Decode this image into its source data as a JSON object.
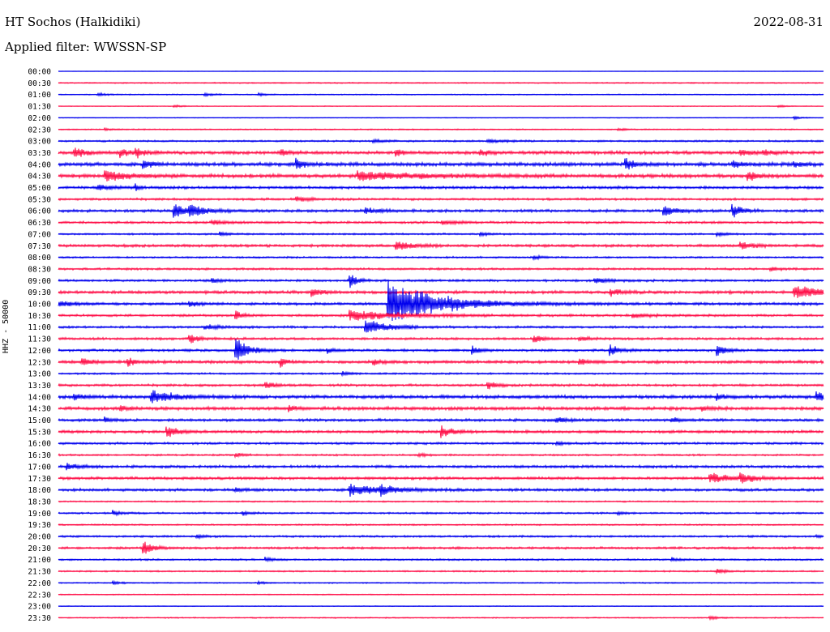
{
  "header": {
    "station": "HT Sochos (Halkidiki)",
    "date": "2022-08-31",
    "filter": "Applied filter: WWSSN-SP"
  },
  "chart_data": {
    "type": "line",
    "title": "HT Sochos (Halkidiki)",
    "ylabel": "HHZ - 50000",
    "xlabel": "",
    "line_colors": [
      "#0000ee",
      "#ff1049"
    ],
    "rows": [
      {
        "label": "00:00",
        "amp": 0.3,
        "events": []
      },
      {
        "label": "00:30",
        "amp": 0.8,
        "events": []
      },
      {
        "label": "01:00",
        "amp": 0.7,
        "events": [
          {
            "x": 0.05,
            "a": 2.5,
            "w": 0.01
          },
          {
            "x": 0.19,
            "a": 3,
            "w": 0.01
          },
          {
            "x": 0.26,
            "a": 2,
            "w": 0.01
          }
        ]
      },
      {
        "label": "01:30",
        "amp": 0.5,
        "events": [
          {
            "x": 0.15,
            "a": 2,
            "w": 0.01
          },
          {
            "x": 0.94,
            "a": 2,
            "w": 0.01
          }
        ]
      },
      {
        "label": "02:00",
        "amp": 0.5,
        "events": [
          {
            "x": 0.96,
            "a": 2.5,
            "w": 0.01
          }
        ]
      },
      {
        "label": "02:30",
        "amp": 0.8,
        "events": [
          {
            "x": 0.06,
            "a": 1.5,
            "w": 0.01
          },
          {
            "x": 0.73,
            "a": 2,
            "w": 0.01
          }
        ]
      },
      {
        "label": "03:00",
        "amp": 1.2,
        "events": [
          {
            "x": 0.41,
            "a": 3,
            "w": 0.01
          },
          {
            "x": 0.56,
            "a": 3,
            "w": 0.02
          }
        ]
      },
      {
        "label": "03:30",
        "amp": 2.2,
        "events": [
          {
            "x": 0.02,
            "a": 7,
            "w": 0.015
          },
          {
            "x": 0.08,
            "a": 6,
            "w": 0.012
          },
          {
            "x": 0.1,
            "a": 8,
            "w": 0.01
          },
          {
            "x": 0.29,
            "a": 6,
            "w": 0.008
          },
          {
            "x": 0.44,
            "a": 6,
            "w": 0.008
          },
          {
            "x": 0.55,
            "a": 5,
            "w": 0.01
          },
          {
            "x": 0.89,
            "a": 6,
            "w": 0.01
          },
          {
            "x": 0.92,
            "a": 5,
            "w": 0.01
          }
        ]
      },
      {
        "label": "04:00",
        "amp": 2.5,
        "events": [
          {
            "x": 0.11,
            "a": 7,
            "w": 0.01
          },
          {
            "x": 0.31,
            "a": 7,
            "w": 0.012
          },
          {
            "x": 0.74,
            "a": 10,
            "w": 0.012
          },
          {
            "x": 0.88,
            "a": 6,
            "w": 0.01
          },
          {
            "x": 0.96,
            "a": 4,
            "w": 0.01
          }
        ]
      },
      {
        "label": "04:30",
        "amp": 2.5,
        "events": [
          {
            "x": 0.06,
            "a": 8,
            "w": 0.025
          },
          {
            "x": 0.39,
            "a": 6,
            "w": 0.07
          },
          {
            "x": 0.9,
            "a": 8,
            "w": 0.01
          }
        ]
      },
      {
        "label": "05:00",
        "amp": 1.8,
        "events": [
          {
            "x": 0.05,
            "a": 4,
            "w": 0.02
          },
          {
            "x": 0.1,
            "a": 8,
            "w": 0.003
          }
        ]
      },
      {
        "label": "05:30",
        "amp": 1.5,
        "events": [
          {
            "x": 0.31,
            "a": 3,
            "w": 0.02
          }
        ]
      },
      {
        "label": "06:00",
        "amp": 1.8,
        "events": [
          {
            "x": 0.15,
            "a": 14,
            "w": 0.012
          },
          {
            "x": 0.17,
            "a": 9,
            "w": 0.02
          },
          {
            "x": 0.4,
            "a": 4,
            "w": 0.02
          },
          {
            "x": 0.79,
            "a": 9,
            "w": 0.015
          },
          {
            "x": 0.88,
            "a": 13,
            "w": 0.01
          }
        ]
      },
      {
        "label": "06:30",
        "amp": 1.5,
        "events": [
          {
            "x": 0.2,
            "a": 3,
            "w": 0.02
          },
          {
            "x": 0.5,
            "a": 3,
            "w": 0.02
          }
        ]
      },
      {
        "label": "07:00",
        "amp": 1.2,
        "events": [
          {
            "x": 0.21,
            "a": 3,
            "w": 0.01
          },
          {
            "x": 0.55,
            "a": 3,
            "w": 0.01
          },
          {
            "x": 0.86,
            "a": 3,
            "w": 0.01
          }
        ]
      },
      {
        "label": "07:30",
        "amp": 1.8,
        "events": [
          {
            "x": 0.44,
            "a": 7,
            "w": 0.02
          },
          {
            "x": 0.89,
            "a": 6,
            "w": 0.015
          }
        ]
      },
      {
        "label": "08:00",
        "amp": 1.2,
        "events": [
          {
            "x": 0.62,
            "a": 3,
            "w": 0.01
          }
        ]
      },
      {
        "label": "08:30",
        "amp": 1.4,
        "events": [
          {
            "x": 0.93,
            "a": 3,
            "w": 0.01
          }
        ]
      },
      {
        "label": "09:00",
        "amp": 1.5,
        "events": [
          {
            "x": 0.2,
            "a": 4,
            "w": 0.01
          },
          {
            "x": 0.38,
            "a": 14,
            "w": 0.008
          },
          {
            "x": 0.7,
            "a": 4,
            "w": 0.02
          }
        ]
      },
      {
        "label": "09:30",
        "amp": 2.0,
        "events": [
          {
            "x": 0.33,
            "a": 5,
            "w": 0.015
          },
          {
            "x": 0.72,
            "a": 5,
            "w": 0.015
          },
          {
            "x": 0.96,
            "a": 10,
            "w": 0.04
          }
        ]
      },
      {
        "label": "10:00",
        "amp": 1.8,
        "events": [
          {
            "x": 0.0,
            "a": 4,
            "w": 0.02
          },
          {
            "x": 0.17,
            "a": 7,
            "w": 0.008
          },
          {
            "x": 0.43,
            "a": 34,
            "w": 0.06
          }
        ]
      },
      {
        "label": "10:30",
        "amp": 1.6,
        "events": [
          {
            "x": 0.23,
            "a": 10,
            "w": 0.008
          },
          {
            "x": 0.38,
            "a": 8,
            "w": 0.06
          },
          {
            "x": 0.75,
            "a": 3,
            "w": 0.02
          }
        ]
      },
      {
        "label": "11:00",
        "amp": 1.5,
        "events": [
          {
            "x": 0.4,
            "a": 10,
            "w": 0.03
          },
          {
            "x": 0.19,
            "a": 3,
            "w": 0.02
          }
        ]
      },
      {
        "label": "11:30",
        "amp": 1.6,
        "events": [
          {
            "x": 0.17,
            "a": 10,
            "w": 0.01
          },
          {
            "x": 0.62,
            "a": 8,
            "w": 0.01
          },
          {
            "x": 0.68,
            "a": 4,
            "w": 0.01
          }
        ]
      },
      {
        "label": "12:00",
        "amp": 1.6,
        "events": [
          {
            "x": 0.23,
            "a": 24,
            "w": 0.015
          },
          {
            "x": 0.35,
            "a": 4,
            "w": 0.01
          },
          {
            "x": 0.54,
            "a": 8,
            "w": 0.008
          },
          {
            "x": 0.72,
            "a": 10,
            "w": 0.01
          },
          {
            "x": 0.86,
            "a": 10,
            "w": 0.01
          }
        ]
      },
      {
        "label": "12:30",
        "amp": 2.0,
        "events": [
          {
            "x": 0.03,
            "a": 7,
            "w": 0.01
          },
          {
            "x": 0.09,
            "a": 6,
            "w": 0.01
          },
          {
            "x": 0.29,
            "a": 7,
            "w": 0.008
          },
          {
            "x": 0.41,
            "a": 6,
            "w": 0.008
          },
          {
            "x": 0.68,
            "a": 5,
            "w": 0.01
          }
        ]
      },
      {
        "label": "13:00",
        "amp": 1.2,
        "events": [
          {
            "x": 0.37,
            "a": 3,
            "w": 0.01
          }
        ]
      },
      {
        "label": "13:30",
        "amp": 1.6,
        "events": [
          {
            "x": 0.27,
            "a": 6,
            "w": 0.01
          },
          {
            "x": 0.56,
            "a": 8,
            "w": 0.01
          }
        ]
      },
      {
        "label": "14:00",
        "amp": 2.2,
        "events": [
          {
            "x": 0.02,
            "a": 5,
            "w": 0.01
          },
          {
            "x": 0.12,
            "a": 11,
            "w": 0.025
          },
          {
            "x": 0.86,
            "a": 5,
            "w": 0.01
          },
          {
            "x": 0.99,
            "a": 7,
            "w": 0.01
          }
        ]
      },
      {
        "label": "14:30",
        "amp": 2.2,
        "events": [
          {
            "x": 0.08,
            "a": 4,
            "w": 0.01
          },
          {
            "x": 0.3,
            "a": 4,
            "w": 0.01
          },
          {
            "x": 0.84,
            "a": 4,
            "w": 0.01
          }
        ]
      },
      {
        "label": "15:00",
        "amp": 1.8,
        "events": [
          {
            "x": 0.06,
            "a": 4,
            "w": 0.01
          },
          {
            "x": 0.65,
            "a": 4,
            "w": 0.015
          },
          {
            "x": 0.8,
            "a": 5,
            "w": 0.01
          }
        ]
      },
      {
        "label": "15:30",
        "amp": 1.8,
        "events": [
          {
            "x": 0.14,
            "a": 10,
            "w": 0.012
          },
          {
            "x": 0.5,
            "a": 8,
            "w": 0.015
          }
        ]
      },
      {
        "label": "16:00",
        "amp": 1.5,
        "events": [
          {
            "x": 0.65,
            "a": 3,
            "w": 0.01
          }
        ]
      },
      {
        "label": "16:30",
        "amp": 1.2,
        "events": [
          {
            "x": 0.23,
            "a": 3,
            "w": 0.01
          },
          {
            "x": 0.47,
            "a": 3,
            "w": 0.01
          }
        ]
      },
      {
        "label": "17:00",
        "amp": 1.8,
        "events": [
          {
            "x": 0.01,
            "a": 5,
            "w": 0.015
          }
        ]
      },
      {
        "label": "17:30",
        "amp": 1.8,
        "events": [
          {
            "x": 0.85,
            "a": 9,
            "w": 0.02
          },
          {
            "x": 0.89,
            "a": 8,
            "w": 0.015
          }
        ]
      },
      {
        "label": "18:00",
        "amp": 1.8,
        "events": [
          {
            "x": 0.23,
            "a": 4,
            "w": 0.01
          },
          {
            "x": 0.38,
            "a": 8,
            "w": 0.04
          },
          {
            "x": 0.42,
            "a": 6,
            "w": 0.015
          }
        ]
      },
      {
        "label": "18:30",
        "amp": 1.0,
        "events": []
      },
      {
        "label": "19:00",
        "amp": 1.2,
        "events": [
          {
            "x": 0.07,
            "a": 4,
            "w": 0.01
          },
          {
            "x": 0.24,
            "a": 4,
            "w": 0.01
          },
          {
            "x": 0.73,
            "a": 3,
            "w": 0.01
          }
        ]
      },
      {
        "label": "19:30",
        "amp": 1.0,
        "events": []
      },
      {
        "label": "20:00",
        "amp": 1.3,
        "events": [
          {
            "x": 0.18,
            "a": 3,
            "w": 0.01
          },
          {
            "x": 0.99,
            "a": 3,
            "w": 0.005
          }
        ]
      },
      {
        "label": "20:30",
        "amp": 1.5,
        "events": [
          {
            "x": 0.11,
            "a": 12,
            "w": 0.012
          }
        ]
      },
      {
        "label": "21:00",
        "amp": 1.2,
        "events": [
          {
            "x": 0.27,
            "a": 3,
            "w": 0.01
          },
          {
            "x": 0.8,
            "a": 3,
            "w": 0.01
          }
        ]
      },
      {
        "label": "21:30",
        "amp": 1.0,
        "events": [
          {
            "x": 0.86,
            "a": 4,
            "w": 0.01
          }
        ]
      },
      {
        "label": "22:00",
        "amp": 0.8,
        "events": [
          {
            "x": 0.07,
            "a": 3,
            "w": 0.01
          },
          {
            "x": 0.26,
            "a": 2,
            "w": 0.008
          }
        ]
      },
      {
        "label": "22:30",
        "amp": 0.7,
        "events": []
      },
      {
        "label": "23:00",
        "amp": 0.5,
        "events": []
      },
      {
        "label": "23:30",
        "amp": 0.8,
        "events": [
          {
            "x": 0.85,
            "a": 3,
            "w": 0.01
          }
        ]
      }
    ]
  }
}
